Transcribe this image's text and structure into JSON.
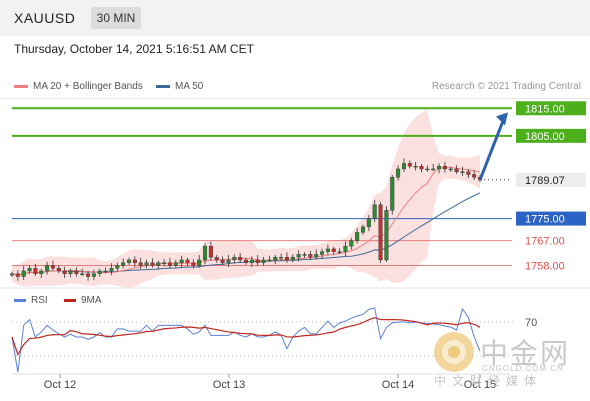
{
  "header": {
    "symbol": "XAUUSD",
    "interval": "30 MIN",
    "datetime": "Thursday, October 14, 2021 5:16:51 AM CET"
  },
  "legend": {
    "ma20": "MA 20 + Bollinger Bands",
    "ma50": "MA 50",
    "credit": "Research © 2021 Trading Central"
  },
  "rsi_legend": {
    "rsi": "RSI",
    "ma9": "9MA"
  },
  "watermark": {
    "name": "中金网",
    "url": "CNGOLD.COM.CN",
    "sub": "中文财经媒体"
  },
  "colors": {
    "resistance": "#4caf1b",
    "pivot": "#2b63c6",
    "support": "#d9534f",
    "ma20": "#f08080",
    "ma50": "#3a6a9a",
    "rsi": "#5b7fd6",
    "rsi_ma": "#c0281d",
    "bollinger": "#f9d0d0",
    "arrow": "#2d63a8"
  },
  "chart_data": [
    {
      "type": "line",
      "subtype": "candlestick",
      "symbol": "XAUUSD",
      "timeframe": "30 MIN",
      "x_ticks": [
        "Oct 12",
        "Oct 13",
        "Oct 14",
        "Oct 15"
      ],
      "ylim": [
        1752,
        1818
      ],
      "grid": false,
      "levels": [
        {
          "label": "1815.00",
          "value": 1815.0,
          "kind": "resistance"
        },
        {
          "label": "1805.00",
          "value": 1805.0,
          "kind": "resistance"
        },
        {
          "label": "1789.07",
          "value": 1789.07,
          "kind": "last"
        },
        {
          "label": "1775.00",
          "value": 1775.0,
          "kind": "pivot"
        },
        {
          "label": "1767.00",
          "value": 1767.0,
          "kind": "support"
        },
        {
          "label": "1758.00",
          "value": 1758.0,
          "kind": "support"
        }
      ],
      "close_series_approx": [
        1755,
        1754,
        1756,
        1757,
        1755,
        1756,
        1758,
        1757,
        1756,
        1755,
        1756,
        1755,
        1755,
        1754,
        1755,
        1756,
        1756,
        1757,
        1758,
        1759,
        1760,
        1759,
        1758,
        1759,
        1758,
        1759,
        1759,
        1758,
        1759,
        1760,
        1759,
        1758,
        1760,
        1765,
        1761,
        1760,
        1759,
        1760,
        1761,
        1760,
        1759,
        1760,
        1759,
        1760,
        1760,
        1761,
        1761,
        1760,
        1761,
        1762,
        1762,
        1761,
        1762,
        1763,
        1764,
        1763,
        1763,
        1765,
        1767,
        1770,
        1772,
        1775,
        1780,
        1760,
        1778,
        1790,
        1793,
        1795,
        1794,
        1794,
        1793,
        1793,
        1793,
        1794,
        1793,
        1793,
        1792,
        1792,
        1791,
        1790,
        1789
      ]
    },
    {
      "type": "line",
      "name": "RSI",
      "series": [
        {
          "name": "RSI"
        },
        {
          "name": "9MA"
        }
      ],
      "y_ticks": [
        70
      ]
    }
  ]
}
